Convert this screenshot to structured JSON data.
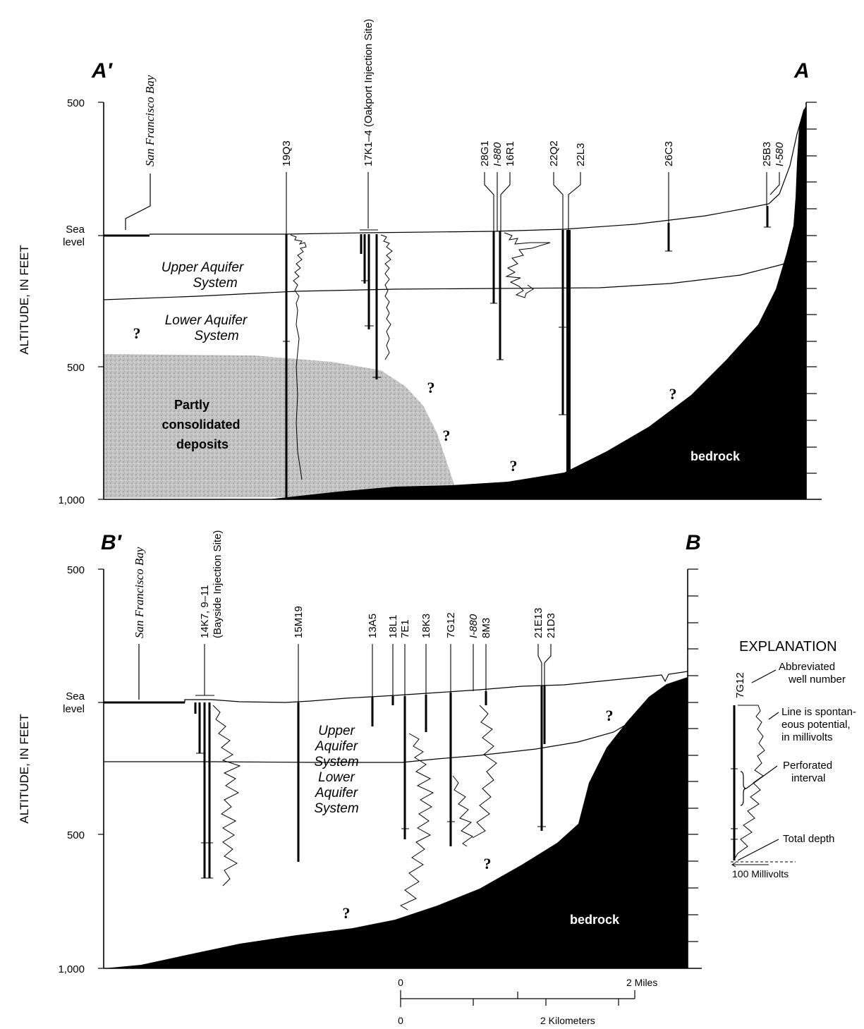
{
  "axis_label": "ALTITUDE, IN FEET",
  "section_a": {
    "left_letter": "A′",
    "right_letter": "A",
    "tick_top": "500",
    "tick_sea": "Sea",
    "tick_sea2": "level",
    "tick_mid": "500",
    "tick_bottom": "1,000",
    "bay": "San Francisco Bay",
    "wells": [
      "19Q3",
      "17K1–4 (Oakport Injection Site)",
      "28G1",
      "I-880",
      "16R1",
      "22Q2",
      "22L3",
      "26C3",
      "25B3",
      "I-580"
    ],
    "upper_1": "Upper Aquifer",
    "upper_2": "System",
    "lower_1": "Lower Aquifer",
    "lower_2": "System",
    "partly_1": "Partly",
    "partly_2": "consolidated",
    "partly_3": "deposits",
    "bedrock": "bedrock",
    "question": "?"
  },
  "section_b": {
    "left_letter": "B′",
    "right_letter": "B",
    "tick_top": "500",
    "tick_sea": "Sea",
    "tick_sea2": "level",
    "tick_mid": "500",
    "tick_bottom": "1,000",
    "bay": "San Francisco Bay",
    "wells": [
      "14K7, 9–11",
      "(Bayside Injection Site)",
      "15M19",
      "13A5",
      "18L1",
      "7E1",
      "18K3",
      "7G12",
      "I-880",
      "8M3",
      "21E13",
      "21D3"
    ],
    "upper_1": "Upper",
    "upper_2": "Aquifer",
    "upper_3": "System",
    "lower_1": "Lower",
    "lower_2": "Aquifer",
    "lower_3": "System",
    "bedrock": "bedrock",
    "question": "?"
  },
  "legend": {
    "title": "EXPLANATION",
    "well": "7G12",
    "abbrev_1": "Abbreviated",
    "abbrev_2": "well number",
    "sp_1": "Line is spontan-",
    "sp_2": "eous potential,",
    "sp_3": "in millivolts",
    "perf_1": "Perforated",
    "perf_2": "interval",
    "depth": "Total depth",
    "mv": "100 Millivolts"
  },
  "scale": {
    "zero_top": "0",
    "miles": "2 Miles",
    "zero_bottom": "0",
    "km": "2 Kilometers"
  },
  "colors": {
    "bedrock": "#000000",
    "partly_consolidated": "#bdbdbd"
  }
}
